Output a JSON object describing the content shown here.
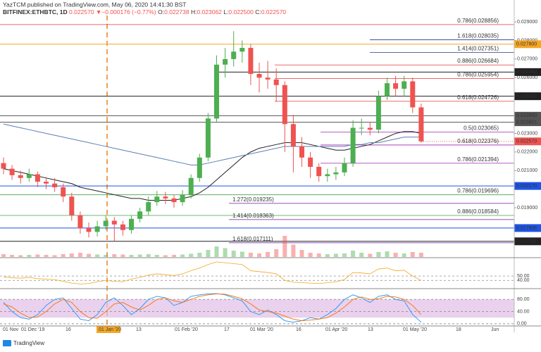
{
  "chart_data": {
    "type": "candlestick",
    "publisher": "YazTCM published on TradingView.com, May 06, 2020 14:41:30 BST",
    "symbol": "BITFINEX:ETHBTC, 1D",
    "quote": [
      "0.022570",
      "▼",
      "−0.000176 (−0.77%)",
      "O:",
      "0.022738",
      "H:",
      "0.023062",
      "L:",
      "0.022500",
      "C:",
      "0.022570"
    ],
    "footer": "TradingView",
    "up_color": "#4caf50",
    "down_color": "#ef5350",
    "ylim": [
      0.01635,
      0.02942
    ],
    "yticks": [
      {
        "value": 0.029,
        "label": "0.029000"
      },
      {
        "value": 0.028,
        "label": "0.028000"
      },
      {
        "value": 0.027,
        "label": "0.027000"
      },
      {
        "value": 0.026,
        "label": "0.026000"
      },
      {
        "value": 0.023,
        "label": "0.023000"
      },
      {
        "value": 0.022,
        "label": "0.022000"
      },
      {
        "value": 0.021,
        "label": "0.021000"
      },
      {
        "value": 0.019,
        "label": "0.019000"
      },
      {
        "value": 0.018,
        "label": "0.018000"
      }
    ],
    "x_labels": [
      "01 Nov",
      "01 Dec '19",
      "16",
      "01 Jan '20",
      "13",
      "01 Feb '20",
      "17",
      "01 Mar '20",
      "16",
      "01 Apr '20",
      "13",
      "01 May '20",
      "18",
      "Jun"
    ],
    "candles": [
      [
        0.0214,
        0.0217,
        0.0208,
        0.0211
      ],
      [
        0.0211,
        0.0213,
        0.0205,
        0.02075
      ],
      [
        0.02075,
        0.021,
        0.0203,
        0.0206
      ],
      [
        0.0206,
        0.0211,
        0.0204,
        0.0208
      ],
      [
        0.0208,
        0.02095,
        0.0201,
        0.0204
      ],
      [
        0.0204,
        0.02065,
        0.02,
        0.0203
      ],
      [
        0.0203,
        0.0206,
        0.01985,
        0.0201
      ],
      [
        0.0201,
        0.0203,
        0.0193,
        0.0196
      ],
      [
        0.0196,
        0.0198,
        0.0183,
        0.0186
      ],
      [
        0.0186,
        0.0188,
        0.0176,
        0.0179
      ],
      [
        0.0179,
        0.0182,
        0.0174,
        0.0177
      ],
      [
        0.0177,
        0.0183,
        0.01745,
        0.018
      ],
      [
        0.018,
        0.0186,
        0.0178,
        0.0183
      ],
      [
        0.0183,
        0.0185,
        0.0172,
        0.0181
      ],
      [
        0.0181,
        0.0183,
        0.0175,
        0.0178
      ],
      [
        0.0178,
        0.0186,
        0.0176,
        0.0184
      ],
      [
        0.0184,
        0.019,
        0.0182,
        0.0188
      ],
      [
        0.0188,
        0.0196,
        0.0186,
        0.0193
      ],
      [
        0.0193,
        0.0199,
        0.0191,
        0.0196
      ],
      [
        0.0196,
        0.01985,
        0.0192,
        0.0195
      ],
      [
        0.0195,
        0.0197,
        0.019,
        0.0193
      ],
      [
        0.0193,
        0.01995,
        0.0191,
        0.0197
      ],
      [
        0.0197,
        0.0208,
        0.0195,
        0.0206
      ],
      [
        0.0206,
        0.0219,
        0.0204,
        0.0217
      ],
      [
        0.0217,
        0.0241,
        0.0215,
        0.0238
      ],
      [
        0.0238,
        0.0272,
        0.0236,
        0.0267
      ],
      [
        0.0267,
        0.0276,
        0.026,
        0.027
      ],
      [
        0.027,
        0.0285,
        0.0266,
        0.0274
      ],
      [
        0.0274,
        0.028,
        0.0268,
        0.0276
      ],
      [
        0.0276,
        0.0278,
        0.0256,
        0.0262
      ],
      [
        0.0262,
        0.0268,
        0.0252,
        0.026
      ],
      [
        0.026,
        0.0269,
        0.0254,
        0.0259
      ],
      [
        0.0259,
        0.0265,
        0.0247,
        0.0256
      ],
      [
        0.0256,
        0.0258,
        0.022,
        0.0235
      ],
      [
        0.0235,
        0.024,
        0.0209,
        0.0223
      ],
      [
        0.0223,
        0.0228,
        0.0212,
        0.0217
      ],
      [
        0.0217,
        0.022,
        0.0206,
        0.0212
      ],
      [
        0.0212,
        0.0214,
        0.0204,
        0.0207
      ],
      [
        0.0207,
        0.0211,
        0.0204,
        0.0208
      ],
      [
        0.0208,
        0.0212,
        0.0205,
        0.0209
      ],
      [
        0.0209,
        0.0217,
        0.0207,
        0.0214
      ],
      [
        0.0214,
        0.0237,
        0.0212,
        0.0233
      ],
      [
        0.0233,
        0.0238,
        0.0229,
        0.0233
      ],
      [
        0.0233,
        0.0236,
        0.0229,
        0.0232
      ],
      [
        0.0232,
        0.0253,
        0.023,
        0.025
      ],
      [
        0.025,
        0.026,
        0.0248,
        0.0257
      ],
      [
        0.0257,
        0.0261,
        0.025,
        0.0254
      ],
      [
        0.0254,
        0.0261,
        0.025,
        0.0258
      ],
      [
        0.0258,
        0.026,
        0.0241,
        0.0244
      ],
      [
        0.0244,
        0.0246,
        0.0225,
        0.02257
      ]
    ],
    "moving_averages": [
      {
        "color": "#212121",
        "values": [
          0.0211,
          0.021,
          0.0209,
          0.0208,
          0.0207,
          0.0206,
          0.0205,
          0.0204,
          0.0203,
          0.0201,
          0.02,
          0.0199,
          0.0198,
          0.0197,
          0.0196,
          0.0195,
          0.0195,
          0.0194,
          0.0194,
          0.0194,
          0.0194,
          0.0195,
          0.0196,
          0.0198,
          0.0201,
          0.0205,
          0.0209,
          0.0213,
          0.0217,
          0.022,
          0.0222,
          0.0223,
          0.0224,
          0.0225,
          0.0225,
          0.0225,
          0.0224,
          0.0223,
          0.0222,
          0.0221,
          0.0221,
          0.0222,
          0.0223,
          0.0224,
          0.0226,
          0.0228,
          0.023,
          0.0231,
          0.0231,
          0.023
        ]
      },
      {
        "color": "#5b7fb5",
        "values": [
          0.0235,
          0.0234,
          0.0233,
          0.0232,
          0.0231,
          0.023,
          0.0229,
          0.0228,
          0.0227,
          0.0226,
          0.0225,
          0.0224,
          0.0223,
          0.0222,
          0.0221,
          0.022,
          0.0219,
          0.0218,
          0.0217,
          0.0216,
          0.0215,
          0.0214,
          0.0213,
          0.0213,
          0.0214,
          0.0215,
          0.0216,
          0.0217,
          0.0218,
          0.0219,
          0.022,
          0.0221,
          0.0222,
          0.0223,
          0.0223,
          0.0223,
          0.0223,
          0.0223,
          0.0223,
          0.0223,
          0.0223,
          0.0224,
          0.0224,
          0.0225,
          0.0225,
          0.0226,
          0.0227,
          0.0228,
          0.0228,
          0.0228
        ]
      }
    ],
    "volume": [
      8,
      6,
      5,
      6,
      7,
      6,
      5,
      8,
      10,
      12,
      9,
      7,
      6,
      8,
      7,
      6,
      7,
      8,
      6,
      5,
      6,
      7,
      9,
      12,
      20,
      30,
      25,
      18,
      15,
      12,
      10,
      14,
      22,
      60,
      35,
      20,
      12,
      10,
      8,
      9,
      10,
      18,
      12,
      9,
      14,
      16,
      12,
      10,
      14,
      12
    ],
    "volume_ylim": [
      0,
      60
    ],
    "levels": [
      {
        "value": 0.0278,
        "label": "0.027800",
        "color": "#f5a623"
      },
      {
        "value": 0.0263,
        "label": "0.026300",
        "color": "#212121"
      },
      {
        "value": 0.025,
        "label": "0.025000",
        "color": "#212121"
      },
      {
        "value": 0.02395,
        "label": "0.023950",
        "color": "#555555"
      },
      {
        "value": 0.023601,
        "label": "0.023601",
        "color": "#555555"
      },
      {
        "value": 0.02017,
        "label": "0.020170",
        "color": "#1e53e5"
      },
      {
        "value": 0.017906,
        "label": "0.017906",
        "color": "#1e53e5"
      },
      {
        "value": 0.017191,
        "label": "0.017191",
        "color": "#212121"
      }
    ],
    "last_price": {
      "value": 0.02257,
      "label": "0.022570",
      "color": "#ef5350"
    },
    "fibs": [
      {
        "ratio": 0.786,
        "price": {
          "value": 0.028856,
          "label": "(0.028856)"
        },
        "color": "#e53935"
      },
      {
        "ratio": 1.618,
        "price": {
          "value": 0.028035,
          "label": "(0.028035)"
        },
        "color": "#283593"
      },
      {
        "ratio": 1.414,
        "price": {
          "value": 0.027351,
          "label": "(0.027351)"
        },
        "color": "#283593"
      },
      {
        "ratio": 0.886,
        "price": {
          "value": 0.026684,
          "label": "(0.026684)"
        },
        "color": "#e53935"
      },
      {
        "ratio": 0.786,
        "price": {
          "value": 0.025954,
          "label": "(0.025954)"
        },
        "color": "#e53935"
      },
      {
        "ratio": 0.618,
        "price": {
          "value": 0.024726,
          "label": "(0.024726)"
        },
        "color": "#e53935"
      },
      {
        "ratio": 0.5,
        "price": {
          "value": 0.023065,
          "label": "(0.023065)"
        },
        "color": "#9c27b0"
      },
      {
        "ratio": 0.618,
        "price": {
          "value": 0.022376,
          "label": "(0.022376)"
        },
        "color": "#9c27b0"
      },
      {
        "ratio": 0.786,
        "price": {
          "value": 0.021394,
          "label": "(0.021394)"
        },
        "color": "#9c27b0"
      },
      {
        "ratio": 0.786,
        "price": {
          "value": 0.019696,
          "label": "(0.019696)"
        },
        "color": "#43a047"
      },
      {
        "ratio": 0.886,
        "price": {
          "value": 0.018584,
          "label": "(0.018584)"
        },
        "color": "#43a047"
      },
      {
        "ratio": 1.272,
        "price": {
          "value": 0.019235,
          "label": "(0.019235)"
        },
        "color": "#6a1b9a"
      },
      {
        "ratio": 1.414,
        "price": {
          "value": 0.018363,
          "label": "(0.018363)"
        },
        "color": "#6a1b9a"
      },
      {
        "ratio": 1.618,
        "price": {
          "value": 0.017111,
          "label": "(0.017111)"
        },
        "color": "#6a1b9a"
      }
    ],
    "rsi": {
      "color": "#f5a623",
      "ylim": [
        23,
        90
      ],
      "yticks": [
        {
          "value": 50,
          "label": "50.00"
        },
        {
          "value": 40,
          "label": "40.00"
        }
      ],
      "values": [
        48,
        46,
        45,
        47,
        44,
        43,
        42,
        38,
        34,
        32,
        33,
        37,
        40,
        38,
        37,
        43,
        47,
        52,
        55,
        53,
        51,
        55,
        62,
        68,
        76,
        82,
        80,
        78,
        76,
        62,
        60,
        58,
        55,
        40,
        36,
        35,
        34,
        33,
        35,
        37,
        42,
        58,
        57,
        55,
        66,
        68,
        62,
        63,
        50,
        40
      ]
    },
    "stoch": {
      "ylim": [
        -5,
        113
      ],
      "band": [
        20,
        80
      ],
      "yticks": [
        {
          "value": 80,
          "label": "80.00"
        },
        {
          "value": 40,
          "label": "40.00"
        },
        {
          "value": 0,
          "label": "0.00"
        }
      ],
      "series": [
        {
          "color": "#2196f3",
          "values": [
            70,
            40,
            20,
            15,
            30,
            60,
            80,
            85,
            50,
            15,
            10,
            30,
            70,
            85,
            60,
            30,
            50,
            80,
            90,
            85,
            60,
            70,
            90,
            95,
            98,
            99,
            95,
            85,
            75,
            40,
            30,
            45,
            30,
            10,
            5,
            10,
            20,
            15,
            30,
            50,
            80,
            95,
            85,
            70,
            90,
            95,
            80,
            75,
            30,
            5
          ]
        },
        {
          "color": "#ff6d00",
          "values": [
            65,
            55,
            35,
            20,
            22,
            40,
            65,
            80,
            70,
            40,
            20,
            18,
            40,
            65,
            70,
            55,
            45,
            60,
            80,
            85,
            75,
            70,
            80,
            90,
            95,
            98,
            97,
            90,
            82,
            65,
            45,
            40,
            35,
            25,
            15,
            10,
            12,
            15,
            20,
            35,
            55,
            80,
            88,
            80,
            82,
            90,
            88,
            80,
            60,
            30
          ]
        }
      ]
    }
  }
}
